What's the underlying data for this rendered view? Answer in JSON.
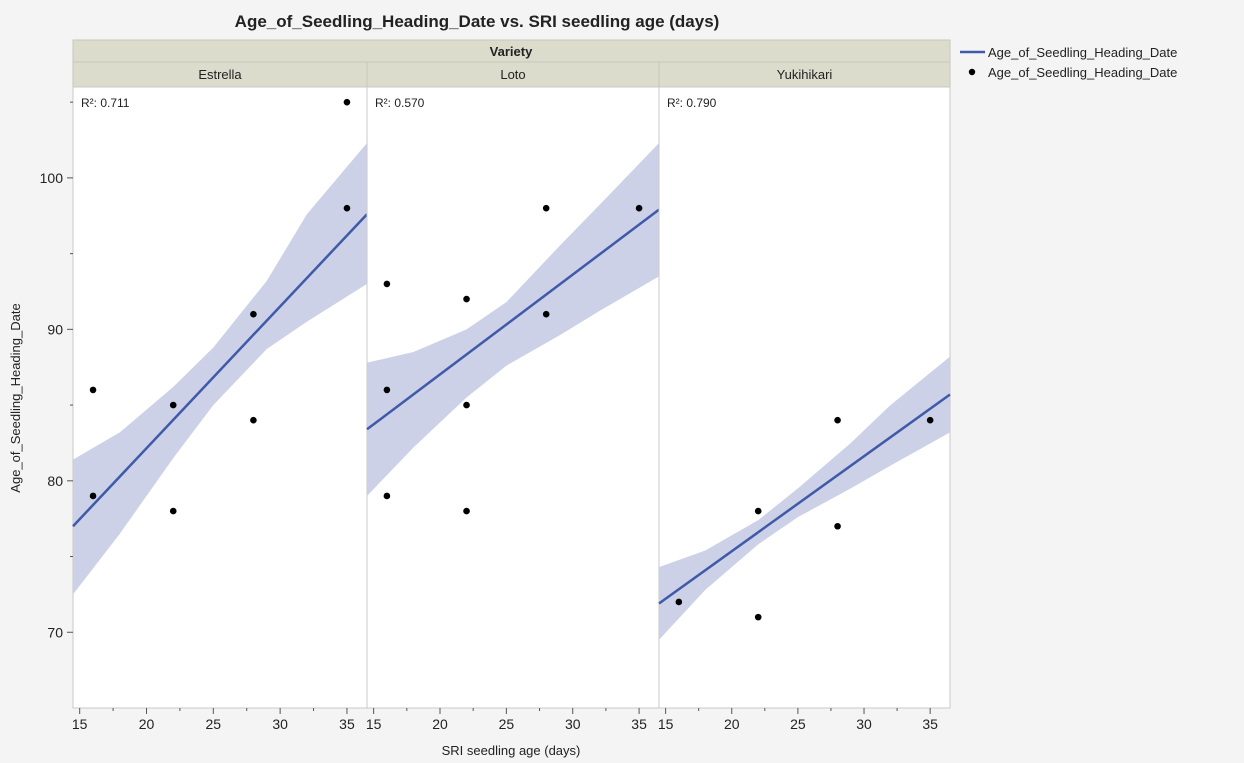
{
  "chart_data": {
    "type": "scatter",
    "title": "Age_of_Seedling_Heading_Date vs. SRI seedling age (days)",
    "group_header": "Variety",
    "xlabel": "SRI seedling age (days)",
    "ylabel": "Age_of_Seedling_Heading_Date",
    "xlim": [
      14.5,
      36.5
    ],
    "ylim": [
      65,
      106
    ],
    "x_ticks": [
      15,
      20,
      25,
      30,
      35
    ],
    "y_ticks": [
      70,
      80,
      90,
      100
    ],
    "grid": false,
    "legend_position": "top-right",
    "legend": [
      {
        "label": "Age_of_Seedling_Heading_Date",
        "kind": "line"
      },
      {
        "label": "Age_of_Seedling_Heading_Date",
        "kind": "marker"
      }
    ],
    "colors": {
      "fit_line": "#3f5aa8",
      "confidence_band": "#c8cce6",
      "points": "#000000",
      "header_fill": "#dcdccd"
    },
    "panels": [
      {
        "name": "Estrella",
        "r2_label": "R²: 0.711",
        "points": [
          [
            16,
            86
          ],
          [
            16,
            79
          ],
          [
            22,
            85
          ],
          [
            22,
            78
          ],
          [
            28,
            91
          ],
          [
            28,
            84
          ],
          [
            35,
            105
          ],
          [
            35,
            98
          ]
        ],
        "fit_line": [
          [
            14.5,
            77.0
          ],
          [
            36.5,
            97.6
          ]
        ],
        "band": [
          [
            14.5,
            72.5,
            81.4
          ],
          [
            18,
            76.5,
            83.2
          ],
          [
            22,
            81.5,
            86.2
          ],
          [
            25,
            85.0,
            88.8
          ],
          [
            29,
            88.7,
            93.2
          ],
          [
            32,
            90.5,
            97.6
          ],
          [
            36.5,
            93.0,
            102.3
          ]
        ]
      },
      {
        "name": "Loto",
        "r2_label": "R²: 0.570",
        "points": [
          [
            16,
            93
          ],
          [
            16,
            86
          ],
          [
            16,
            79
          ],
          [
            22,
            92
          ],
          [
            22,
            85
          ],
          [
            22,
            78
          ],
          [
            28,
            98
          ],
          [
            28,
            91
          ],
          [
            35,
            98
          ]
        ],
        "fit_line": [
          [
            14.5,
            83.4
          ],
          [
            36.5,
            97.9
          ]
        ],
        "band": [
          [
            14.5,
            79.0,
            87.8
          ],
          [
            18,
            82.2,
            88.5
          ],
          [
            22,
            85.5,
            90.0
          ],
          [
            25,
            87.6,
            91.8
          ],
          [
            29,
            89.6,
            95.5
          ],
          [
            32,
            91.2,
            98.2
          ],
          [
            36.5,
            93.5,
            102.3
          ]
        ]
      },
      {
        "name": "Yukihikari",
        "r2_label": "R²: 0.790",
        "points": [
          [
            16,
            72
          ],
          [
            22,
            78
          ],
          [
            22,
            71
          ],
          [
            28,
            84
          ],
          [
            28,
            77
          ],
          [
            35,
            84
          ]
        ],
        "fit_line": [
          [
            14.5,
            71.9
          ],
          [
            36.5,
            85.7
          ]
        ],
        "band": [
          [
            14.5,
            69.5,
            74.3
          ],
          [
            18,
            72.8,
            75.4
          ],
          [
            22,
            75.8,
            77.4
          ],
          [
            25,
            77.6,
            79.5
          ],
          [
            29,
            79.5,
            82.5
          ],
          [
            32,
            81.0,
            85.0
          ],
          [
            36.5,
            83.2,
            88.2
          ]
        ]
      }
    ]
  }
}
